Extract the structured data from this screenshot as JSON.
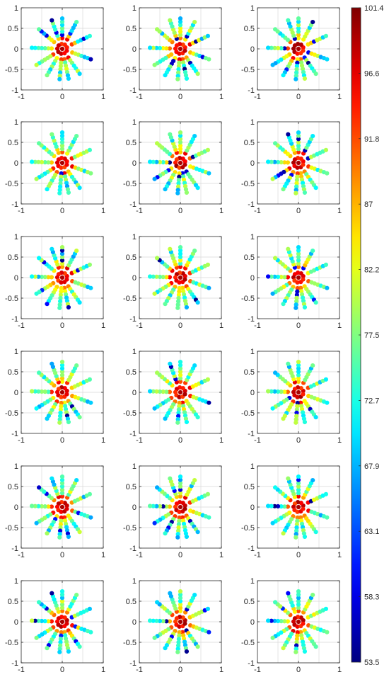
{
  "chart_data": {
    "type": "scatter",
    "layout": "6 rows x 3 columns of small-multiple polar scatter panels with a shared colorbar",
    "panels": 18,
    "x_ticks": [
      "-1",
      "0",
      "1"
    ],
    "y_ticks": [
      "1",
      "0.5",
      "0",
      "-0.5",
      "-1"
    ],
    "xlim": [
      -1,
      1
    ],
    "ylim": [
      -1,
      1
    ],
    "grid": true,
    "colormap": "jet",
    "colorbar": {
      "range": [
        53.5,
        101.4
      ],
      "tick_labels": [
        "101.4",
        "96.6",
        "91.8",
        "87",
        "82.2",
        "77.5",
        "72.7",
        "67.9",
        "63.1",
        "58.3",
        "53.5"
      ]
    },
    "spoke_angles_deg": [
      90,
      62,
      25,
      -20,
      -55,
      -78,
      -95,
      -120,
      -148,
      178,
      140,
      110
    ],
    "spoke_radii": [
      0.26,
      0.34,
      0.42,
      0.5,
      0.58,
      0.66,
      0.74
    ],
    "inner_ring_radius": 0.12,
    "inner_ring_count": 9,
    "typical_values": {
      "center": 99.5,
      "inner_ring": 96,
      "spoke_near_center": 90,
      "spoke_mid": 76,
      "spoke_outer": 70
    }
  },
  "colors": {
    "axis": "#262626",
    "grid": "#d9d9d9",
    "marker_edge": "none"
  }
}
